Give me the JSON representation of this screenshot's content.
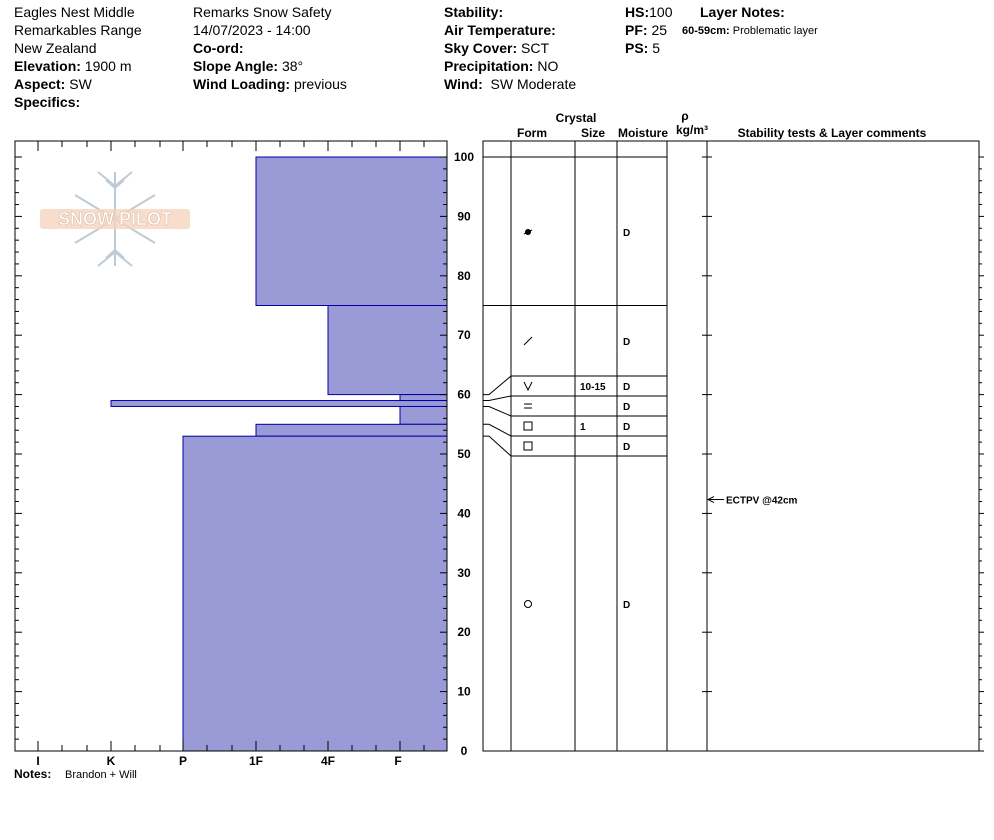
{
  "header": {
    "location_name": "Eagles Nest Middle",
    "range": "Remarkables Range",
    "country": "New Zealand",
    "elevation_label": "Elevation:",
    "elevation_value": "1900 m",
    "aspect_label": "Aspect:",
    "aspect_value": "SW",
    "specifics_label": "Specifics:",
    "observer": "Remarks Snow Safety",
    "datetime": "14/07/2023 - 14:00",
    "coord_label": "Co-ord:",
    "slope_label": "Slope Angle:",
    "slope_value": "38°",
    "wind_loading_label": "Wind Loading:",
    "wind_loading_value": "previous",
    "stability_label": "Stability:",
    "air_temp_label": "Air Temperature:",
    "sky_label": "Sky Cover:",
    "sky_value": "SCT",
    "precip_label": "Precipitation:",
    "precip_value": "NO",
    "wind_label": "Wind:",
    "wind_value": "SW Moderate",
    "hs_label": "HS:",
    "hs_value": "100",
    "pf_label": "PF:",
    "pf_value": "25",
    "ps_label": "PS:",
    "ps_value": "5",
    "layer_notes_label": "Layer Notes:",
    "layer_note_range": "60-59cm:",
    "layer_note_text": "Problematic layer"
  },
  "logo_text": "SNOW PILOT",
  "notes_label": "Notes:",
  "notes_value": "Brandon + Will",
  "columns": {
    "crystal": "Crystal",
    "form": "Form",
    "size": "Size",
    "moisture": "Moisture",
    "rho": "ρ",
    "density_unit": "kg/m³",
    "stability": "Stability tests & Layer comments"
  },
  "colors": {
    "hardness_fill": "#9a9ad6",
    "hardness_stroke": "#0000aa"
  },
  "chart_data": {
    "type": "bar",
    "orientation": "horizontal",
    "hardness_scale": [
      "I",
      "K",
      "P",
      "1F",
      "4F",
      "F"
    ],
    "y_ticks": [
      100,
      90,
      80,
      70,
      60,
      50,
      40,
      30,
      20,
      10,
      0
    ],
    "ylim": [
      0,
      102
    ],
    "layers": [
      {
        "top": 100,
        "bottom": 75,
        "hardness": "1F",
        "form": "precip-particle-icon",
        "size": "",
        "moisture": "D"
      },
      {
        "top": 75,
        "bottom": 60,
        "hardness": "4F",
        "form": "decomposing-icon",
        "size": "",
        "moisture": "D"
      },
      {
        "top": 60,
        "bottom": 59,
        "hardness": "F",
        "form": "depth-hoar-icon",
        "size": "10-15",
        "moisture": "D"
      },
      {
        "top": 59,
        "bottom": 58,
        "hardness": "K",
        "form": "crust-icon",
        "size": "",
        "moisture": "D"
      },
      {
        "top": 58,
        "bottom": 55,
        "hardness": "F",
        "form": "faceted-icon",
        "size": "1",
        "moisture": "D"
      },
      {
        "top": 55,
        "bottom": 53,
        "hardness": "1F",
        "form": "faceted-icon",
        "size": "",
        "moisture": "D"
      },
      {
        "top": 53,
        "bottom": 0,
        "hardness": "P",
        "form": "rounded-grain-icon",
        "size": "",
        "moisture": "D"
      }
    ],
    "tests": [
      {
        "depth": 42,
        "label": "ECTPV @42cm"
      }
    ]
  }
}
